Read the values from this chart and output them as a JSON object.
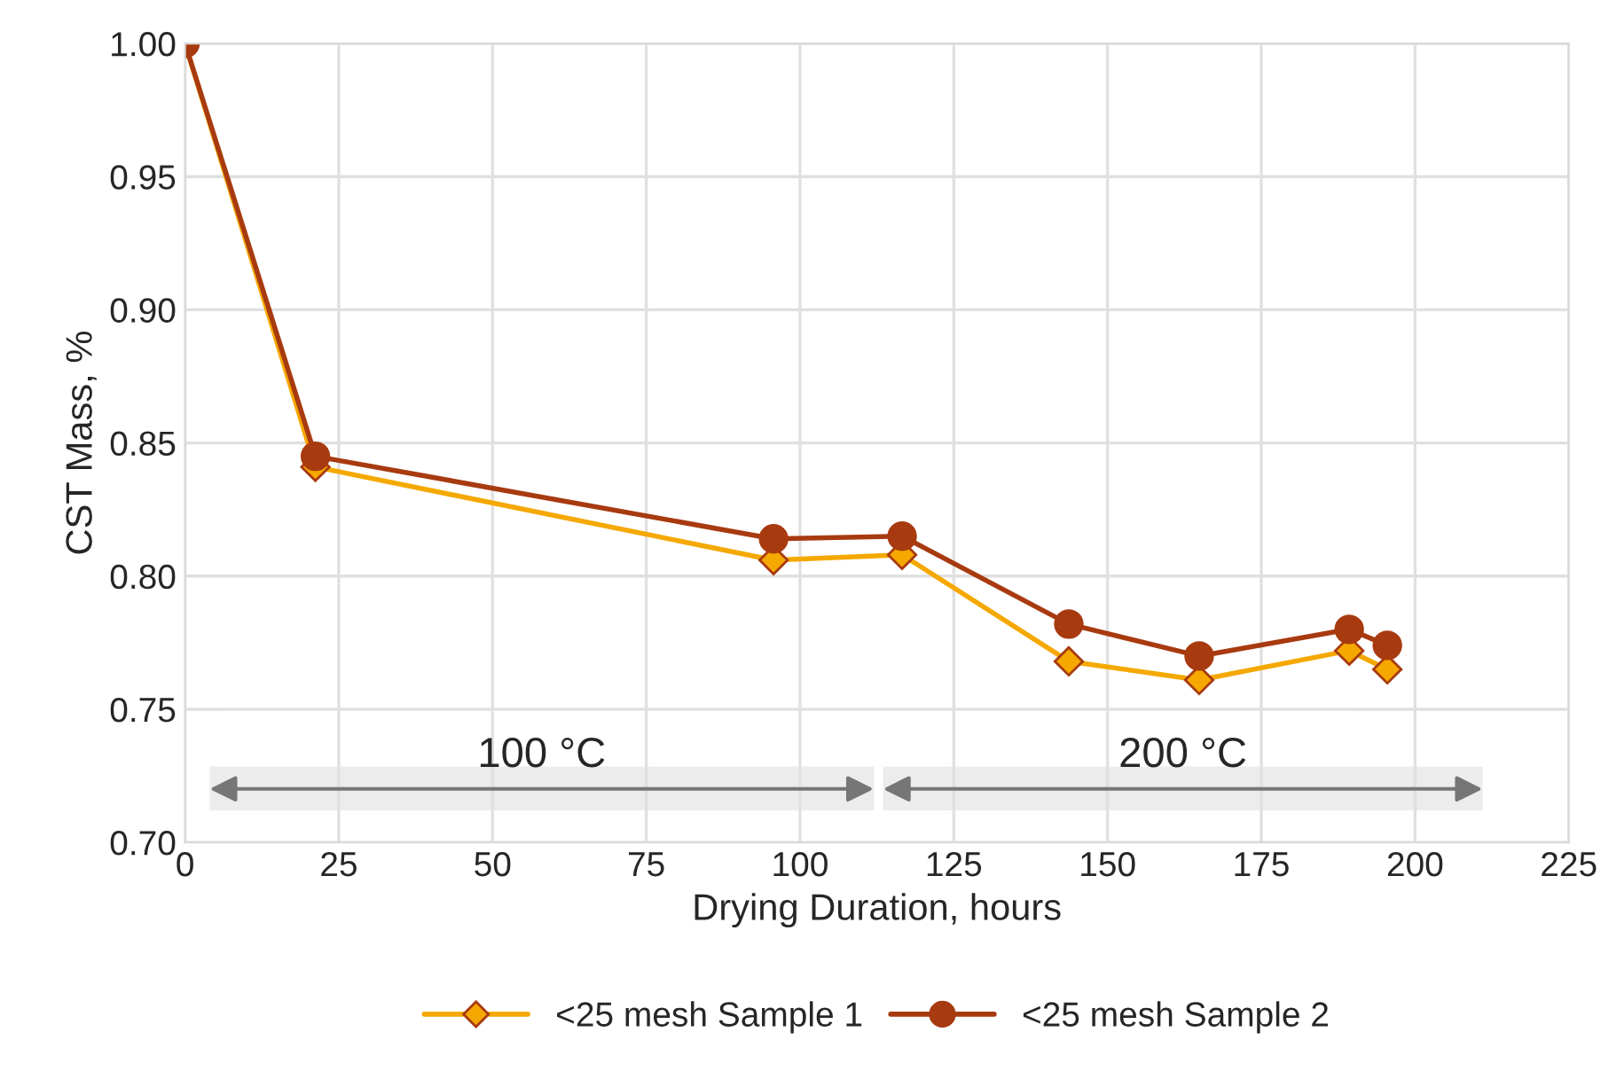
{
  "chart_data": {
    "type": "line",
    "xlabel": "Drying Duration, hours",
    "ylabel": "CST Mass, %",
    "xlim": [
      0,
      225
    ],
    "xticks": [
      0,
      25,
      50,
      75,
      100,
      125,
      150,
      175,
      200,
      225
    ],
    "ylim": [
      0.7,
      1.0
    ],
    "yticks": [
      {
        "value": 0.7,
        "label": "0.70"
      },
      {
        "value": 0.75,
        "label": "0.75"
      },
      {
        "value": 0.8,
        "label": "0.80"
      },
      {
        "value": 0.85,
        "label": "0.85"
      },
      {
        "value": 0.9,
        "label": "0.90"
      },
      {
        "value": 0.95,
        "label": "0.95"
      },
      {
        "value": 1.0,
        "label": "1.00"
      }
    ],
    "grid": true,
    "legend": "bottom",
    "series": [
      {
        "name": "<25 mesh Sample 1",
        "color": "#f5a800",
        "marker": "diamond",
        "x": [
          0,
          21.2,
          95.7,
          116.6,
          143.7,
          164.9,
          189.3,
          195.5
        ],
        "values": [
          1.0,
          0.841,
          0.806,
          0.808,
          0.768,
          0.761,
          0.772,
          0.765
        ]
      },
      {
        "name": "<25 mesh Sample 2",
        "color": "#a83a10",
        "marker": "circle",
        "x": [
          0,
          21.2,
          95.7,
          116.6,
          143.7,
          164.9,
          189.3,
          195.5
        ],
        "values": [
          1.0,
          0.845,
          0.814,
          0.815,
          0.782,
          0.77,
          0.78,
          0.774
        ]
      }
    ],
    "bands": [
      {
        "axis": "x",
        "from": 4,
        "to": 112,
        "label": "100 °C",
        "color": "#ececec"
      },
      {
        "axis": "x",
        "from": 113.5,
        "to": 211,
        "label": "200 °C",
        "color": "#ececec"
      }
    ]
  }
}
